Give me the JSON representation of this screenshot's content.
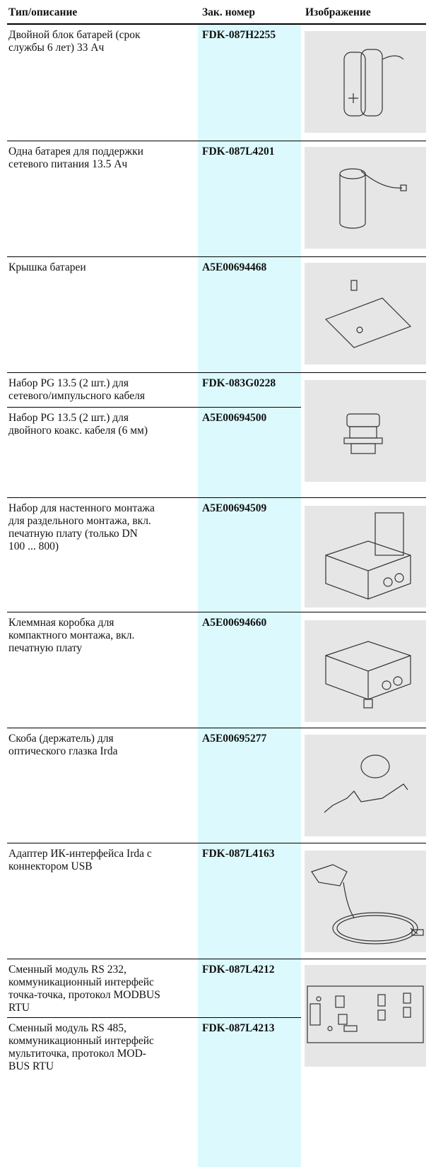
{
  "header": {
    "columns": [
      "Тип/описание",
      "Зак. номер",
      "Изображение"
    ]
  },
  "rows": [
    {
      "items": [
        {
          "description": [
            "Двойной блок батарей (срок",
            "службы 6 лет) 33 Ач"
          ],
          "order_number": "FDK-087H2255"
        }
      ]
    },
    {
      "items": [
        {
          "description": [
            "Одна батарея для поддержки",
            "сетевого питания 13.5 Ач"
          ],
          "order_number": "FDK-087L4201"
        }
      ]
    },
    {
      "items": [
        {
          "description": [
            "Крышка батареи"
          ],
          "order_number": "A5E00694468"
        }
      ]
    },
    {
      "items": [
        {
          "description": [
            "Набор PG 13.5 (2 шт.) для",
            "сетевого/импульсного кабеля"
          ],
          "order_number": "FDK-083G0228"
        },
        {
          "description": [
            "Набор PG 13.5 (2 шт.) для",
            "двойного коакс. кабеля (6 мм)"
          ],
          "order_number": "A5E00694500"
        }
      ]
    },
    {
      "items": [
        {
          "description": [
            "Набор для настенного монтажа",
            "для раздельного монтажа, вкл.",
            "печатную плату (только DN",
            "100 ... 800)"
          ],
          "order_number": "A5E00694509"
        }
      ]
    },
    {
      "items": [
        {
          "description": [
            "Клеммная коробка для",
            "компактного монтажа, вкл.",
            "печатную плату"
          ],
          "order_number": "A5E00694660"
        }
      ]
    },
    {
      "items": [
        {
          "description": [
            "Скоба (держатель) для",
            "оптического глазка Irda"
          ],
          "order_number": "A5E00695277"
        }
      ]
    },
    {
      "items": [
        {
          "description": [
            "Адаптер ИК-интерфейса Irda с",
            "коннектором USB"
          ],
          "order_number": "FDK-087L4163"
        }
      ]
    },
    {
      "items": [
        {
          "description": [
            "Сменный модуль RS 232,",
            "коммуникационный интерфейс",
            "точка-точка, протокол MODBUS",
            "RTU"
          ],
          "order_number": "FDK-087L4212"
        },
        {
          "description": [
            "Сменный модуль RS 485,",
            "коммуникационный интерфейс",
            "мультиточка, протокол MOD-",
            "BUS RTU"
          ],
          "order_number": "FDK-087L4213"
        }
      ]
    }
  ]
}
